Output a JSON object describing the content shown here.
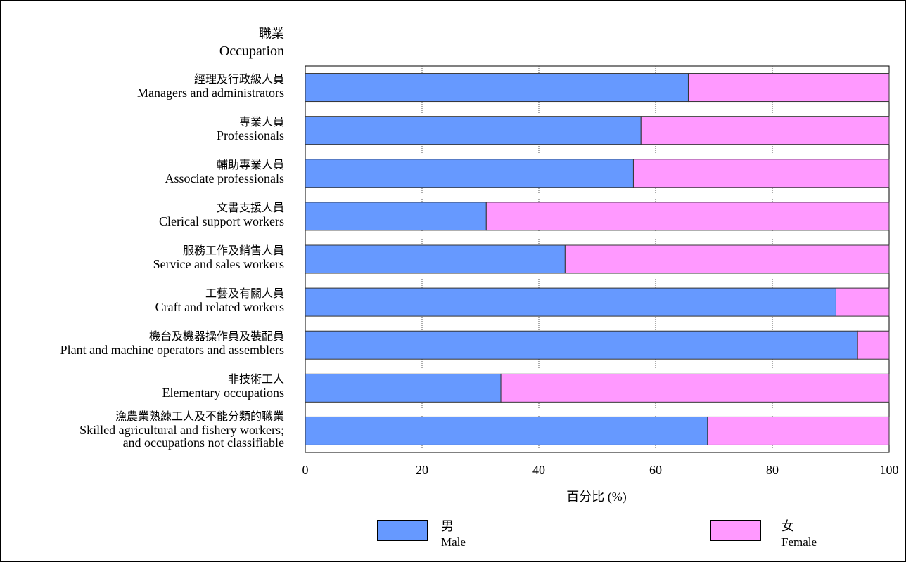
{
  "chart_data": {
    "type": "bar",
    "orientation": "horizontal",
    "stacked": true,
    "title_zh": "職業",
    "title_en": "Occupation",
    "xlabel": "百分比 (%)",
    "xlim": [
      0,
      100
    ],
    "xticks": [
      "0",
      "20",
      "40",
      "60",
      "80",
      "100"
    ],
    "grid": true,
    "legend_position": "bottom",
    "categories": [
      {
        "zh": "經理及行政級人員",
        "en": "Managers and administrators"
      },
      {
        "zh": "專業人員",
        "en": "Professionals"
      },
      {
        "zh": "輔助專業人員",
        "en": "Associate professionals"
      },
      {
        "zh": "文書支援人員",
        "en": "Clerical support workers"
      },
      {
        "zh": "服務工作及銷售人員",
        "en": "Service and sales workers"
      },
      {
        "zh": "工藝及有關人員",
        "en": "Craft and related workers"
      },
      {
        "zh": "機台及機器操作員及裝配員",
        "en": "Plant and machine operators and assemblers"
      },
      {
        "zh": "非技術工人",
        "en": "Elementary occupations"
      },
      {
        "zh": "漁農業熟練工人及不能分類的職業",
        "en": "Skilled agricultural and fishery workers;",
        "en2": "and occupations not classifiable"
      }
    ],
    "series": [
      {
        "name_zh": "男",
        "name_en": "Male",
        "color": "#6699ff",
        "values": [
          65.6,
          57.5,
          56.2,
          31.0,
          44.5,
          90.9,
          94.6,
          33.5,
          68.9
        ]
      },
      {
        "name_zh": "女",
        "name_en": "Female",
        "color": "#ff99ff",
        "values": [
          34.4,
          42.5,
          43.8,
          69.0,
          55.5,
          9.1,
          5.4,
          66.5,
          31.1
        ]
      }
    ]
  }
}
